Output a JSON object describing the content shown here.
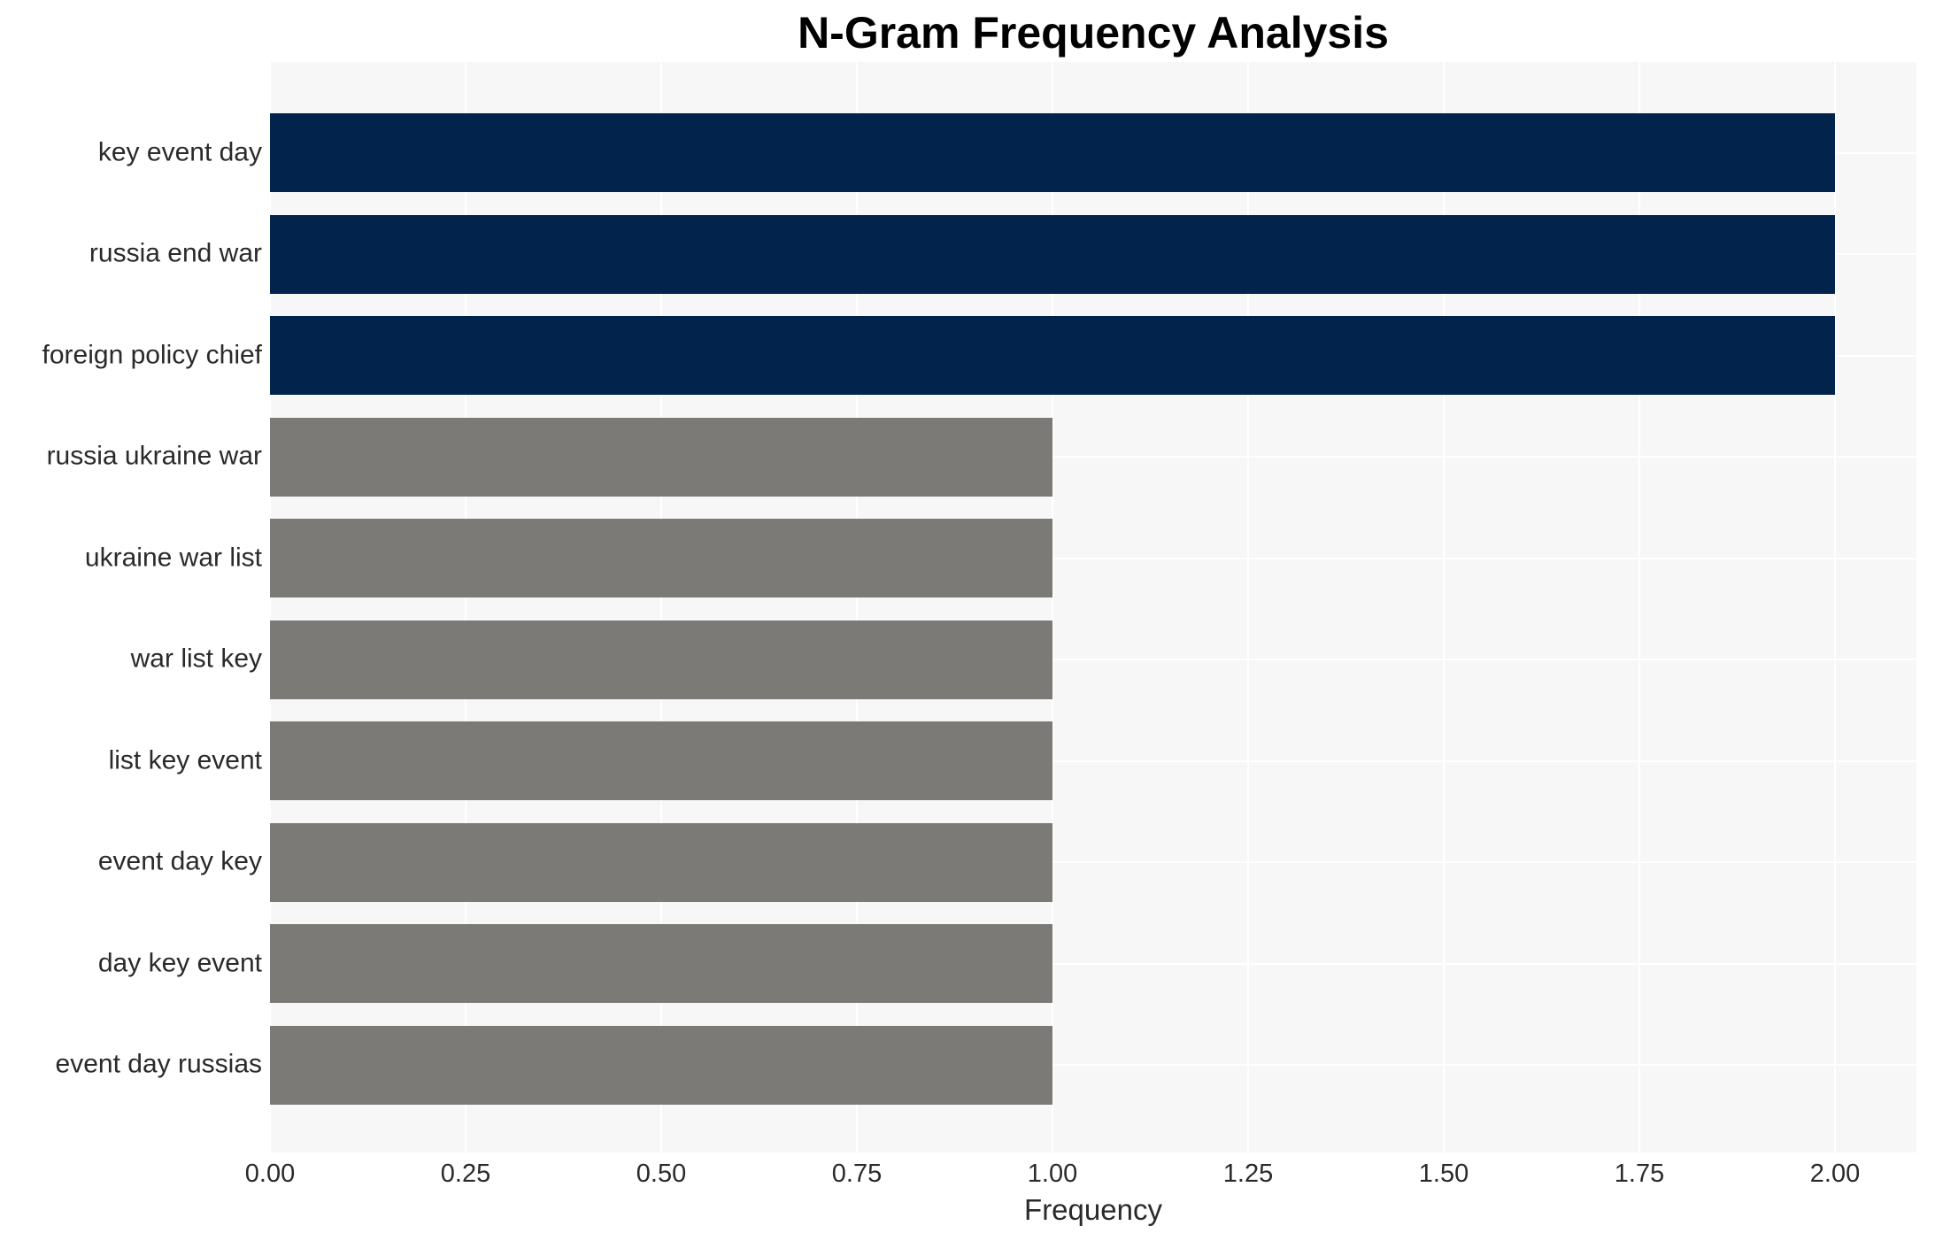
{
  "chart_data": {
    "type": "bar",
    "orientation": "horizontal",
    "title": "N-Gram Frequency Analysis",
    "xlabel": "Frequency",
    "ylabel": "",
    "categories": [
      "key event day",
      "russia end war",
      "foreign policy chief",
      "russia ukraine war",
      "ukraine war list",
      "war list key",
      "list key event",
      "event day key",
      "day key event",
      "event day russias"
    ],
    "values": [
      2,
      2,
      2,
      1,
      1,
      1,
      1,
      1,
      1,
      1
    ],
    "bar_colors": [
      "#02234b",
      "#02234b",
      "#02234b",
      "#7b7a76",
      "#7b7a76",
      "#7b7a76",
      "#7b7a76",
      "#7b7a76",
      "#7b7a76",
      "#7b7a76"
    ],
    "xtick_labels": [
      "0.00",
      "0.25",
      "0.50",
      "0.75",
      "1.00",
      "1.25",
      "1.50",
      "1.75",
      "2.00"
    ],
    "xtick_values": [
      0,
      0.25,
      0.5,
      0.75,
      1.0,
      1.25,
      1.5,
      1.75,
      2.0
    ],
    "xlim": [
      0,
      2.1
    ],
    "grid": true,
    "legend_position": "none",
    "colors": {
      "highlight_bar": "#02234b",
      "default_bar": "#7b7a76",
      "plot_background": "#f7f7f7",
      "gridline": "#ffffff",
      "text": "#2a2a2a",
      "title_text": "#000000"
    }
  }
}
